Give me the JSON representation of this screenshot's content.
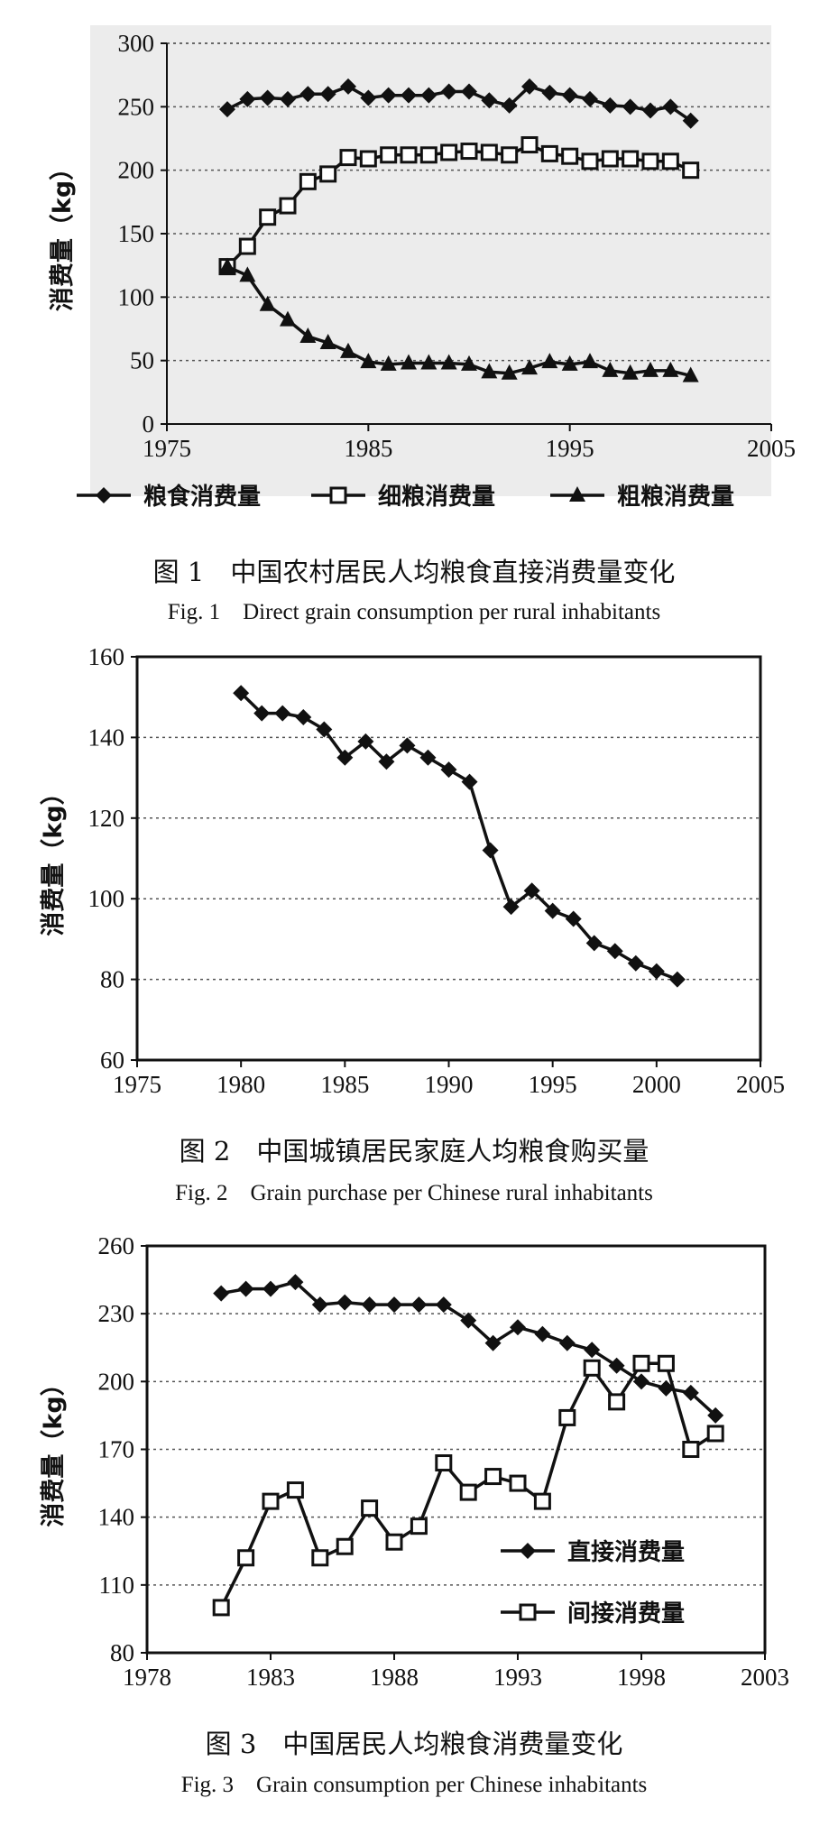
{
  "chart_data": [
    {
      "type": "line",
      "title": "",
      "xlabel": "",
      "ylabel": "消费量（kg）",
      "xlim": [
        1975,
        2005
      ],
      "ylim": [
        0,
        300
      ],
      "xticks": [
        "1975",
        "1985",
        "1995",
        "2005"
      ],
      "yticks": [
        "0",
        "50",
        "100",
        "150",
        "200",
        "250",
        "300"
      ],
      "grid": true,
      "legend_position": "bottom",
      "caption_cn": "图 1　中国农村居民人均粮食直接消费量变化",
      "caption_en": "Fig. 1　Direct grain consumption per rural inhabitants",
      "series": [
        {
          "name": "粮食消费量",
          "marker": "diamond",
          "x": [
            1978,
            1979,
            1980,
            1981,
            1982,
            1983,
            1984,
            1985,
            1986,
            1987,
            1988,
            1989,
            1990,
            1991,
            1992,
            1993,
            1994,
            1995,
            1996,
            1997,
            1998,
            1999,
            2000,
            2001
          ],
          "y": [
            248,
            256,
            257,
            256,
            260,
            260,
            266,
            257,
            259,
            259,
            259,
            262,
            262,
            255,
            251,
            266,
            261,
            259,
            256,
            251,
            250,
            247,
            250,
            239
          ]
        },
        {
          "name": "细粮消费量",
          "marker": "square-open",
          "x": [
            1978,
            1979,
            1980,
            1981,
            1982,
            1983,
            1984,
            1985,
            1986,
            1987,
            1988,
            1989,
            1990,
            1991,
            1992,
            1993,
            1994,
            1995,
            1996,
            1997,
            1998,
            1999,
            2000,
            2001
          ],
          "y": [
            124,
            140,
            163,
            172,
            191,
            197,
            210,
            209,
            212,
            212,
            212,
            214,
            215,
            214,
            212,
            220,
            213,
            211,
            207,
            209,
            209,
            207,
            207,
            200
          ]
        },
        {
          "name": "粗粮消费量",
          "marker": "triangle",
          "x": [
            1978,
            1979,
            1980,
            1981,
            1982,
            1983,
            1984,
            1985,
            1986,
            1987,
            1988,
            1989,
            1990,
            1991,
            1992,
            1993,
            1994,
            1995,
            1996,
            1997,
            1998,
            1999,
            2000,
            2001
          ],
          "y": [
            124,
            117,
            94,
            82,
            69,
            64,
            57,
            49,
            47,
            48,
            48,
            48,
            47,
            41,
            40,
            44,
            49,
            47,
            49,
            42,
            40,
            42,
            42,
            38
          ]
        }
      ]
    },
    {
      "type": "line",
      "title": "",
      "xlabel": "",
      "ylabel": "消费量（kg）",
      "xlim": [
        1975,
        2005
      ],
      "ylim": [
        60,
        160
      ],
      "xticks": [
        "1975",
        "1980",
        "1985",
        "1990",
        "1995",
        "2000",
        "2005"
      ],
      "yticks": [
        "60",
        "80",
        "100",
        "120",
        "140",
        "160"
      ],
      "grid": true,
      "legend_position": "none",
      "caption_cn": "图 2　中国城镇居民家庭人均粮食购买量",
      "caption_en": "Fig. 2　Grain purchase per Chinese rural inhabitants",
      "series": [
        {
          "name": "",
          "marker": "diamond",
          "x": [
            1980,
            1981,
            1982,
            1983,
            1984,
            1985,
            1986,
            1987,
            1988,
            1989,
            1990,
            1991,
            1992,
            1993,
            1994,
            1995,
            1996,
            1997,
            1998,
            1999,
            2000,
            2001
          ],
          "y": [
            151,
            146,
            146,
            145,
            142,
            135,
            139,
            134,
            138,
            135,
            132,
            129,
            112,
            98,
            102,
            97,
            95,
            89,
            87,
            84,
            82,
            80
          ]
        }
      ]
    },
    {
      "type": "line",
      "title": "",
      "xlabel": "",
      "ylabel": "消费量（kg）",
      "xlim": [
        1978,
        2003
      ],
      "ylim": [
        80,
        260
      ],
      "xticks": [
        "1978",
        "1983",
        "1988",
        "1993",
        "1998",
        "2003"
      ],
      "yticks": [
        "80",
        "110",
        "140",
        "170",
        "200",
        "230",
        "260"
      ],
      "grid": true,
      "legend_position": "lower-right",
      "caption_cn": "图 3　中国居民人均粮食消费量变化",
      "caption_en": "Fig. 3　Grain consumption per Chinese inhabitants",
      "series": [
        {
          "name": "直接消费量",
          "marker": "diamond",
          "x": [
            1981,
            1982,
            1983,
            1984,
            1985,
            1986,
            1987,
            1988,
            1989,
            1990,
            1991,
            1992,
            1993,
            1994,
            1995,
            1996,
            1997,
            1998,
            1999,
            2000,
            2001
          ],
          "y": [
            239,
            241,
            241,
            244,
            234,
            235,
            234,
            234,
            234,
            234,
            227,
            217,
            224,
            221,
            217,
            214,
            207,
            200,
            197,
            195,
            185
          ]
        },
        {
          "name": "间接消费量",
          "marker": "square-open",
          "x": [
            1981,
            1982,
            1983,
            1984,
            1985,
            1986,
            1987,
            1988,
            1989,
            1990,
            1991,
            1992,
            1993,
            1994,
            1995,
            1996,
            1997,
            1998,
            1999,
            2000,
            2001
          ],
          "y": [
            100,
            122,
            147,
            152,
            122,
            127,
            144,
            129,
            136,
            164,
            151,
            158,
            155,
            147,
            184,
            206,
            191,
            208,
            208,
            170,
            177
          ]
        }
      ]
    }
  ]
}
